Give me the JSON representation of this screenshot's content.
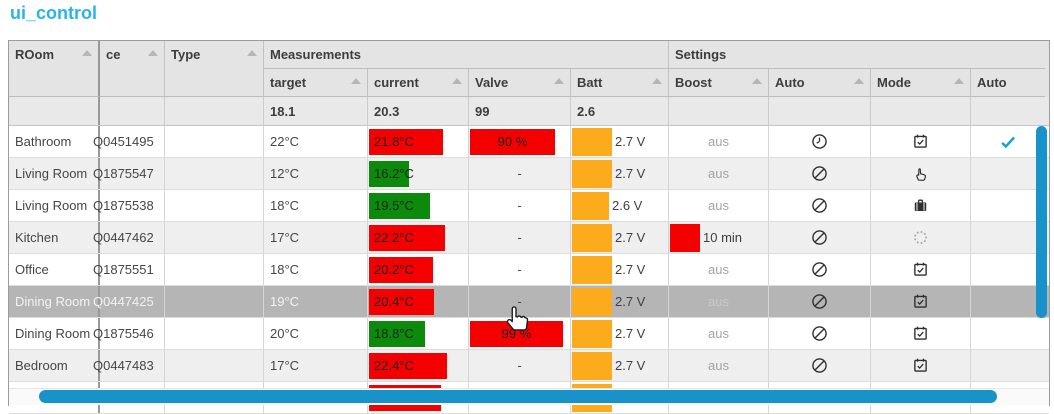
{
  "title": "ui_control",
  "colors": {
    "accent_blue": "#29b3ef",
    "bar_red": "#f40000",
    "bar_green": "#0b8a0b",
    "bar_orange": "#fbab1c",
    "scrollbar_blue": "#1793c9",
    "highlight_gray": "#b5b5b5",
    "check_blue": "#1b9fd8"
  },
  "table": {
    "headers": {
      "room": "ROom",
      "device": "ce",
      "type": "Type",
      "measurements_group": "Measurements",
      "settings_group": "Settings",
      "target": "target",
      "current": "current",
      "valve": "Valve",
      "batt": "Batt",
      "boost": "Boost",
      "auto": "Auto",
      "mode": "Mode",
      "auto2": "Auto"
    },
    "filter": {
      "target": "18.1",
      "current": "20.3",
      "valve": "99",
      "batt": "2.6"
    },
    "rows": [
      {
        "room": "Bathroom",
        "device": "Q0451495",
        "type": "",
        "target": "22°C",
        "current": {
          "text": "21.8°C",
          "color": "red",
          "width": 74
        },
        "valve": {
          "text": "90 %",
          "width": 85
        },
        "batt": {
          "text": "2.7 V",
          "width": 40
        },
        "boost": {
          "text": "aus"
        },
        "auto_icon": "clock-icon",
        "mode_icon": "calendar-check-icon",
        "auto2_icon": "check-icon",
        "highlight": false
      },
      {
        "room": "Living Room",
        "device": "Q1875547",
        "type": "",
        "target": "12°C",
        "current": {
          "text": "16.2°C",
          "color": "green",
          "width": 40
        },
        "valve": "-",
        "batt": {
          "text": "2.7 V",
          "width": 40
        },
        "boost": {
          "text": "aus"
        },
        "auto_icon": "blocked-icon",
        "mode_icon": "hand-icon",
        "auto2_icon": "",
        "highlight": false
      },
      {
        "room": "Living Room",
        "device": "Q1875538",
        "type": "",
        "target": "18°C",
        "current": {
          "text": "19.5°C",
          "color": "green",
          "width": 61
        },
        "valve": "-",
        "batt": {
          "text": "2.6 V",
          "width": 37
        },
        "boost": {
          "text": "aus"
        },
        "auto_icon": "blocked-icon",
        "mode_icon": "briefcase-icon",
        "auto2_icon": "",
        "highlight": false
      },
      {
        "room": "Kitchen",
        "device": "Q0447462",
        "type": "",
        "target": "17°C",
        "current": {
          "text": "22.2°C",
          "color": "red",
          "width": 76
        },
        "valve": "-",
        "batt": {
          "text": "2.7 V",
          "width": 40
        },
        "boost": {
          "text": "10 min",
          "width": 30
        },
        "auto_icon": "blocked-icon",
        "mode_icon": "spinner-icon",
        "auto2_icon": "",
        "highlight": false
      },
      {
        "room": "Office",
        "device": "Q1875551",
        "type": "",
        "target": "18°C",
        "current": {
          "text": "20.2°C",
          "color": "red",
          "width": 64
        },
        "valve": "-",
        "batt": {
          "text": "2.7 V",
          "width": 40
        },
        "boost": {
          "text": "aus"
        },
        "auto_icon": "blocked-icon",
        "mode_icon": "calendar-check-icon",
        "auto2_icon": "",
        "highlight": false
      },
      {
        "room": "Dining Room",
        "device": "Q0447425",
        "type": "",
        "target": "19°C",
        "current": {
          "text": "20.4°C",
          "color": "red",
          "width": 65
        },
        "valve": "-",
        "batt": {
          "text": "2.7 V",
          "width": 40
        },
        "boost": {
          "text": "aus"
        },
        "auto_icon": "blocked-icon",
        "mode_icon": "calendar-check-icon",
        "auto2_icon": "",
        "highlight": true
      },
      {
        "room": "Dining Room",
        "device": "Q1875546",
        "type": "",
        "target": "20°C",
        "current": {
          "text": "18.8°C",
          "color": "green",
          "width": 56
        },
        "valve": {
          "text": "99 %",
          "width": 93
        },
        "batt": {
          "text": "2.7 V",
          "width": 40
        },
        "boost": {
          "text": "aus"
        },
        "auto_icon": "blocked-icon",
        "mode_icon": "calendar-check-icon",
        "auto2_icon": "",
        "highlight": false
      },
      {
        "room": "Bedroom",
        "device": "Q0447483",
        "type": "",
        "target": "17°C",
        "current": {
          "text": "22.4°C",
          "color": "red",
          "width": 78
        },
        "valve": "-",
        "batt": {
          "text": "2.7 V",
          "width": 40
        },
        "boost": {
          "text": "aus"
        },
        "auto_icon": "blocked-icon",
        "mode_icon": "calendar-check-icon",
        "auto2_icon": "",
        "highlight": false
      },
      {
        "room": "",
        "device": "",
        "type": "",
        "target": "",
        "current": {
          "text": "",
          "color": "red",
          "width": 72
        },
        "valve": "",
        "batt": {
          "text": "",
          "width": 40
        },
        "boost": {
          "text": ""
        },
        "auto_icon": "",
        "mode_icon": "",
        "auto2_icon": "",
        "highlight": false,
        "partial": true
      }
    ]
  }
}
